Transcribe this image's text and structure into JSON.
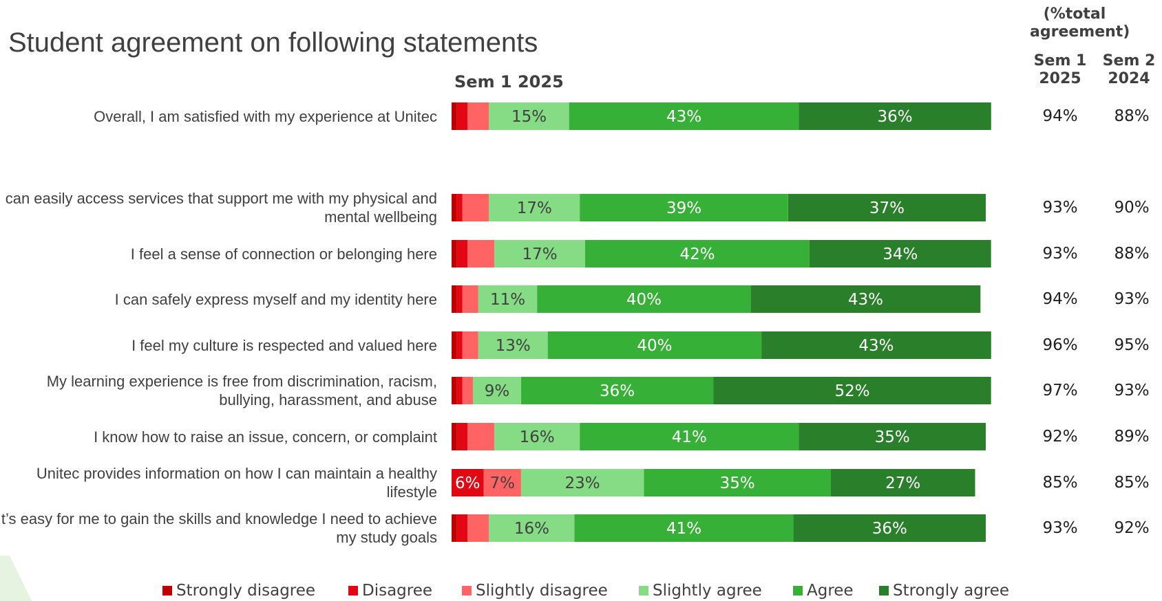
{
  "title": "Student agreement on following statements",
  "columns": {
    "title": "(%total agreement)",
    "sem1": "Sem 1 2025",
    "sem2": "Sem 2 2024"
  },
  "colors": {
    "strongly_disagree": "#c00000",
    "disagree": "#e30613",
    "slightly_disagree": "#ff6363",
    "slightly_agree": "#85dc85",
    "agree": "#37b037",
    "strongly_agree": "#2a802a"
  },
  "chart_data": {
    "type": "bar",
    "orientation": "horizontal",
    "stacked": true,
    "title": "Sem 1 2025",
    "categories": [
      "Overall, I am satisfied with my experience at Unitec",
      "I can easily access services that support me with my physical and mental wellbeing",
      "I feel a sense of connection or belonging here",
      "I can safely express myself and my identity here",
      "I feel my culture is respected and valued here",
      "My learning experience is free from discrimination, racism, bullying, harassment, and abuse",
      "I know how to raise an issue, concern, or complaint",
      "Unitec provides information on how I can maintain a healthy lifestyle",
      "It’s easy for me to gain the skills and knowledge I need to achieve my study goals"
    ],
    "series": [
      {
        "name": "Strongly disagree",
        "color": "#c00000",
        "values": [
          1,
          1,
          1,
          1,
          1,
          1,
          1,
          0,
          1
        ]
      },
      {
        "name": "Disagree",
        "color": "#e30613",
        "values": [
          2,
          1,
          2,
          1,
          1,
          1,
          2,
          6,
          2
        ]
      },
      {
        "name": "Slightly disagree",
        "color": "#ff6363",
        "values": [
          4,
          5,
          5,
          3,
          3,
          2,
          5,
          7,
          4
        ]
      },
      {
        "name": "Slightly agree",
        "color": "#85dc85",
        "values": [
          15,
          17,
          17,
          11,
          13,
          9,
          16,
          23,
          16
        ]
      },
      {
        "name": "Agree",
        "color": "#37b037",
        "values": [
          43,
          39,
          42,
          40,
          40,
          36,
          41,
          35,
          41
        ]
      },
      {
        "name": "Strongly agree",
        "color": "#2a802a",
        "values": [
          36,
          37,
          34,
          43,
          43,
          52,
          35,
          27,
          36
        ]
      }
    ],
    "data_labels": [
      [
        "",
        "",
        "",
        "15%",
        "43%",
        "36%"
      ],
      [
        "",
        "",
        "",
        "17%",
        "39%",
        "37%"
      ],
      [
        "",
        "",
        "",
        "17%",
        "42%",
        "34%"
      ],
      [
        "",
        "",
        "",
        "11%",
        "40%",
        "43%"
      ],
      [
        "",
        "",
        "",
        "13%",
        "40%",
        "43%"
      ],
      [
        "",
        "",
        "",
        "9%",
        "36%",
        "52%"
      ],
      [
        "",
        "",
        "",
        "16%",
        "41%",
        "35%"
      ],
      [
        "",
        "6%",
        "7%",
        "23%",
        "35%",
        "27%"
      ],
      [
        "",
        "",
        "",
        "16%",
        "41%",
        "36%"
      ]
    ],
    "total_agreement": {
      "sem1_2025": [
        "94%",
        "93%",
        "93%",
        "94%",
        "96%",
        "97%",
        "92%",
        "85%",
        "93%"
      ],
      "sem2_2024": [
        "88%",
        "90%",
        "88%",
        "93%",
        "95%",
        "93%",
        "89%",
        "85%",
        "92%"
      ]
    },
    "xlim": [
      0,
      100
    ],
    "grid": false,
    "legend_position": "bottom"
  }
}
